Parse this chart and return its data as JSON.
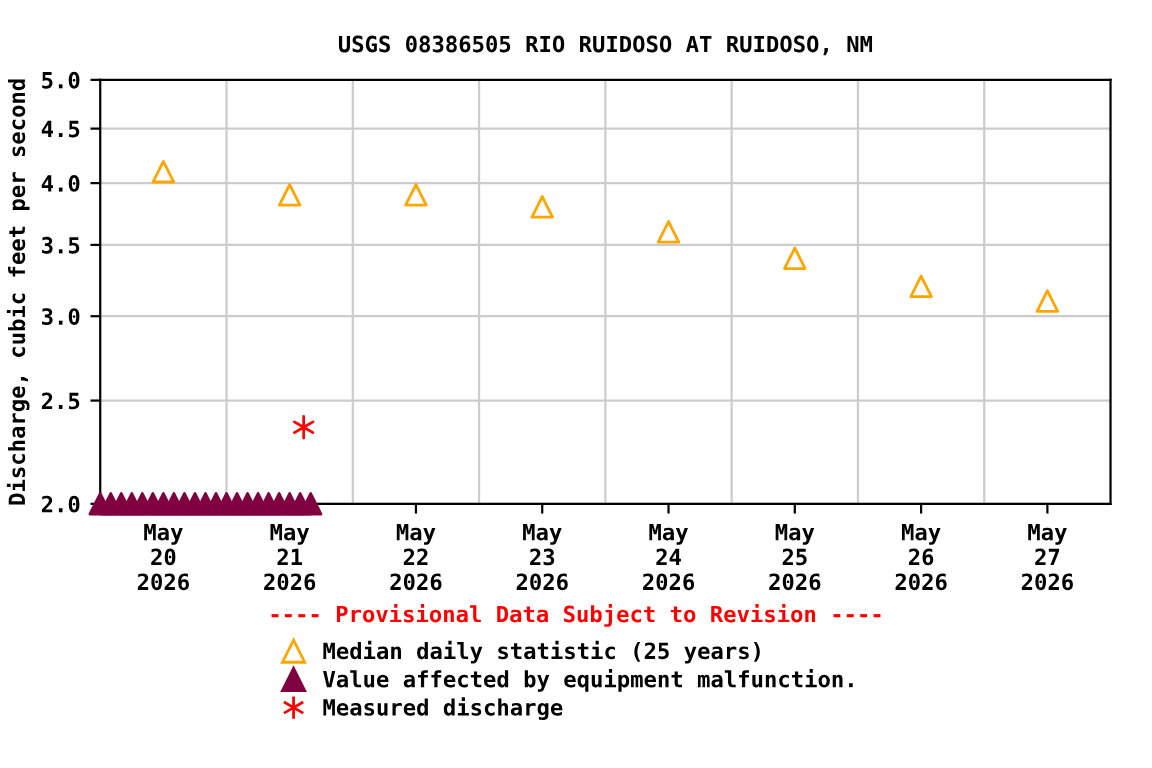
{
  "chart_data": {
    "type": "scatter",
    "title": "USGS 08386505 RIO RUIDOSO AT RUIDOSO, NM",
    "ylabel": "Discharge, cubic feet per second",
    "log": "y",
    "ylim": [
      2.0,
      5.0
    ],
    "yticks": [
      {
        "value": 2.0,
        "label": "2.0"
      },
      2.5,
      {
        "value": 3.0,
        "label": "3.0"
      },
      3.5,
      {
        "value": 4.0,
        "label": "4.0"
      },
      4.5,
      {
        "value": 5.0,
        "label": "5.0"
      }
    ],
    "xlim": [
      "2026-05-20T00:00",
      "2026-05-28T00:00"
    ],
    "xticks": [
      {
        "value": "2026-05-20T12:00",
        "label": "May\n20\n2026"
      },
      {
        "value": "2026-05-21T12:00",
        "label": "May\n21\n2026"
      },
      {
        "value": "2026-05-22T12:00",
        "label": "May\n22\n2026"
      },
      {
        "value": "2026-05-23T12:00",
        "label": "May\n23\n2026"
      },
      {
        "value": "2026-05-24T12:00",
        "label": "May\n24\n2026"
      },
      {
        "value": "2026-05-25T12:00",
        "label": "May\n25\n2026"
      },
      {
        "value": "2026-05-26T12:00",
        "label": "May\n26\n2026"
      },
      {
        "value": "2026-05-27T12:00",
        "label": "May\n27\n2026"
      },
      {
        "value": "2026-05-21T00:00",
        "label": null
      },
      {
        "value": "2026-05-22T00:00",
        "label": null
      },
      {
        "value": "2026-05-23T00:00",
        "label": null
      },
      {
        "value": "2026-05-24T00:00",
        "label": null
      },
      {
        "value": "2026-05-25T00:00",
        "label": null
      },
      {
        "value": "2026-05-26T00:00",
        "label": null
      },
      {
        "value": "2026-05-27T00:00",
        "label": null
      }
    ],
    "grid": true,
    "legend": "bottom",
    "annotations": [
      "---- Provisional Data Subject to Revision ----"
    ],
    "series": [
      {
        "name": "Median daily statistic (25 years)",
        "color": "#ffa500",
        "marker": "triangle",
        "x": [
          "2026-05-20T12:00",
          "2026-05-21T12:00",
          "2026-05-22T12:00",
          "2026-05-23T12:00",
          "2026-05-24T12:00",
          "2026-05-25T12:00",
          "2026-05-26T12:00",
          "2026-05-27T12:00"
        ],
        "values": [
          4.1,
          3.9,
          3.9,
          3.8,
          3.6,
          3.4,
          3.2,
          3.1
        ]
      },
      {
        "name": "Value affected by equipment malfunction.",
        "color": "#800040",
        "marker": "triangle",
        "x": [
          "2026-05-20T00:00",
          "2026-05-20T02:00",
          "2026-05-20T04:00",
          "2026-05-20T06:00",
          "2026-05-20T08:00",
          "2026-05-20T10:00",
          "2026-05-20T12:00",
          "2026-05-20T14:00",
          "2026-05-20T16:00",
          "2026-05-20T18:00",
          "2026-05-20T20:00",
          "2026-05-20T22:00",
          "2026-05-21T00:00",
          "2026-05-21T02:00",
          "2026-05-21T04:00",
          "2026-05-21T06:00",
          "2026-05-21T08:00",
          "2026-05-21T10:00",
          "2026-05-21T12:00",
          "2026-05-21T14:00",
          "2026-05-21T16:00"
        ],
        "values": [
          2.0,
          2.0,
          2.0,
          2.0,
          2.0,
          2.0,
          2.0,
          2.0,
          2.0,
          2.0,
          2.0,
          2.0,
          2.0,
          2.0,
          2.0,
          2.0,
          2.0,
          2.0,
          2.0,
          2.0,
          2.0
        ]
      },
      {
        "name": "Measured discharge",
        "color": "#ff0000",
        "marker": "cross",
        "x": [
          "2026-05-21T14:40"
        ],
        "values": [
          2.36
        ]
      }
    ]
  }
}
